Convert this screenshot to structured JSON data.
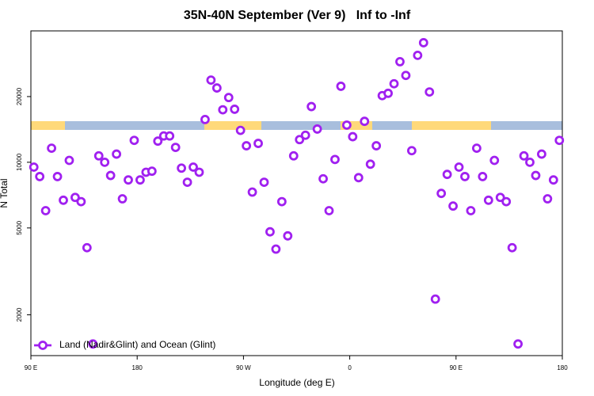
{
  "chart_data": {
    "type": "scatter",
    "title": "35N-40N September (Ver 9)   Inf to -Inf",
    "x_label": "Longitude (deg E)",
    "y_label": "N Total",
    "ylog": true,
    "grid": false,
    "legend_position": "bottom-left",
    "xlim": [
      90,
      540
    ],
    "ylim": [
      1300,
      40000
    ],
    "xticks": [
      {
        "value": 90,
        "label": "90 E"
      },
      {
        "value": 180,
        "label": "180"
      },
      {
        "value": 270,
        "label": "90 W"
      },
      {
        "value": 360,
        "label": "0"
      },
      {
        "value": 450,
        "label": "90 E"
      },
      {
        "value": 540,
        "label": "180"
      }
    ],
    "yticks": [
      2000,
      5000,
      10000,
      20000
    ],
    "series": [
      {
        "name": "Land (Nadir&Glint) and Ocean (Glint)",
        "color": "#a020f0",
        "x": [
          92.5,
          97.5,
          102.5,
          107.5,
          112.5,
          117.5,
          122.5,
          127.5,
          132.5,
          137.5,
          142.5,
          147.5,
          152.5,
          157.5,
          162.5,
          167.5,
          172.5,
          177.5,
          182.5,
          187.5,
          192.5,
          197.5,
          202.5,
          207.5,
          212.5,
          217.5,
          222.5,
          227.5,
          232.5,
          237.5,
          242.5,
          247.5,
          252.5,
          257.5,
          262.5,
          267.5,
          272.5,
          277.5,
          282.5,
          287.5,
          292.5,
          297.5,
          302.5,
          307.5,
          312.5,
          317.5,
          322.5,
          327.5,
          332.5,
          337.5,
          342.5,
          347.5,
          352.5,
          357.5,
          362.5,
          367.5,
          372.5,
          377.5,
          382.5,
          387.5,
          392.5,
          397.5,
          402.5,
          407.5,
          412.5,
          417.5,
          422.5,
          427.5,
          432.5,
          437.5,
          442.5,
          447.5,
          452.5,
          457.5,
          462.5,
          467.5,
          472.5,
          477.5,
          482.5,
          487.5,
          492.5,
          497.5,
          502.5,
          507.5,
          512.5,
          517.5,
          522.5,
          527.5,
          532.5,
          537.5
        ],
        "values": [
          9500,
          8600,
          6000,
          11600,
          8600,
          6700,
          10200,
          6900,
          6600,
          4060,
          1470,
          10700,
          10000,
          8700,
          10900,
          6800,
          8300,
          12600,
          8300,
          9000,
          9100,
          12500,
          13200,
          13200,
          11700,
          9400,
          8100,
          9500,
          9000,
          15700,
          23800,
          21900,
          17400,
          19800,
          17500,
          14000,
          11900,
          7300,
          12200,
          8100,
          4800,
          4000,
          6600,
          4600,
          10700,
          12700,
          13300,
          18000,
          14200,
          8400,
          6000,
          10300,
          22300,
          14800,
          13100,
          8500,
          15400,
          9800,
          11900,
          20200,
          20700,
          22900,
          28900,
          25000,
          11300,
          30900,
          35300,
          21000,
          2360,
          7200,
          8800,
          6300,
          9500,
          8600,
          6000,
          11600,
          8600,
          6700,
          10200,
          6900,
          6600,
          4060,
          1470,
          10700,
          10000,
          8700,
          10900,
          6800,
          8300,
          12600
        ]
      }
    ]
  }
}
